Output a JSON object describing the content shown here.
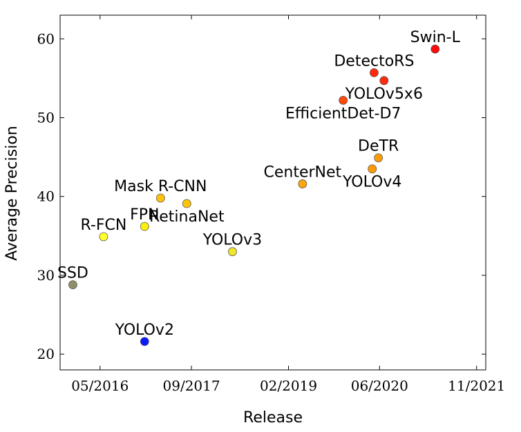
{
  "chart_data": {
    "type": "scatter",
    "xlabel": "Release",
    "ylabel": "Average Precision",
    "xlim": [
      "2015-10-01",
      "2021-12-20"
    ],
    "ylim": [
      18,
      63
    ],
    "x_ticks": [
      "05/2016",
      "09/2017",
      "02/2019",
      "06/2020",
      "11/2021"
    ],
    "x_tick_dates": [
      "2016-05-01",
      "2017-09-01",
      "2019-02-01",
      "2020-06-01",
      "2021-11-01"
    ],
    "y_ticks": [
      20,
      30,
      40,
      50,
      60
    ],
    "grid": false,
    "points": [
      {
        "label": "SSD",
        "x": "2015-12-08",
        "y": 28.8,
        "color": "#8f8f6a",
        "label_pos": "above"
      },
      {
        "label": "YOLOv2",
        "x": "2016-12-25",
        "y": 21.6,
        "color": "#0a1aff",
        "label_pos": "above"
      },
      {
        "label": "R-FCN",
        "x": "2016-05-20",
        "y": 34.9,
        "color": "#ffff2a",
        "label_pos": "above"
      },
      {
        "label": "FPN",
        "x": "2016-12-25",
        "y": 36.2,
        "color": "#ffef0a",
        "label_pos": "above"
      },
      {
        "label": "Mask R-CNN",
        "x": "2017-03-20",
        "y": 39.8,
        "color": "#ffc20a",
        "label_pos": "above"
      },
      {
        "label": "RetinaNet",
        "x": "2017-08-07",
        "y": 39.1,
        "color": "#ffc30a",
        "label_pos": "below"
      },
      {
        "label": "YOLOv3",
        "x": "2018-04-08",
        "y": 33.0,
        "color": "#f0e62a",
        "label_pos": "above"
      },
      {
        "label": "CenterNet",
        "x": "2019-04-17",
        "y": 41.6,
        "color": "#ffa50a",
        "label_pos": "above"
      },
      {
        "label": "EfficientDet-D7",
        "x": "2019-11-20",
        "y": 52.2,
        "color": "#ff4a0a",
        "label_pos": "below"
      },
      {
        "label": "DetectoRS",
        "x": "2020-05-03",
        "y": 55.7,
        "color": "#ff2a0a",
        "label_pos": "above"
      },
      {
        "label": "YOLOv4",
        "x": "2020-04-23",
        "y": 43.5,
        "color": "#ff9a0a",
        "label_pos": "below"
      },
      {
        "label": "DeTR",
        "x": "2020-05-26",
        "y": 44.9,
        "color": "#ff9a0a",
        "label_pos": "above"
      },
      {
        "label": "YOLOv5x6",
        "x": "2020-06-25",
        "y": 54.7,
        "color": "#ff2a0a",
        "label_pos": "below"
      },
      {
        "label": "Swin-L",
        "x": "2021-03-25",
        "y": 58.7,
        "color": "#ff0a0a",
        "label_pos": "above"
      }
    ]
  }
}
